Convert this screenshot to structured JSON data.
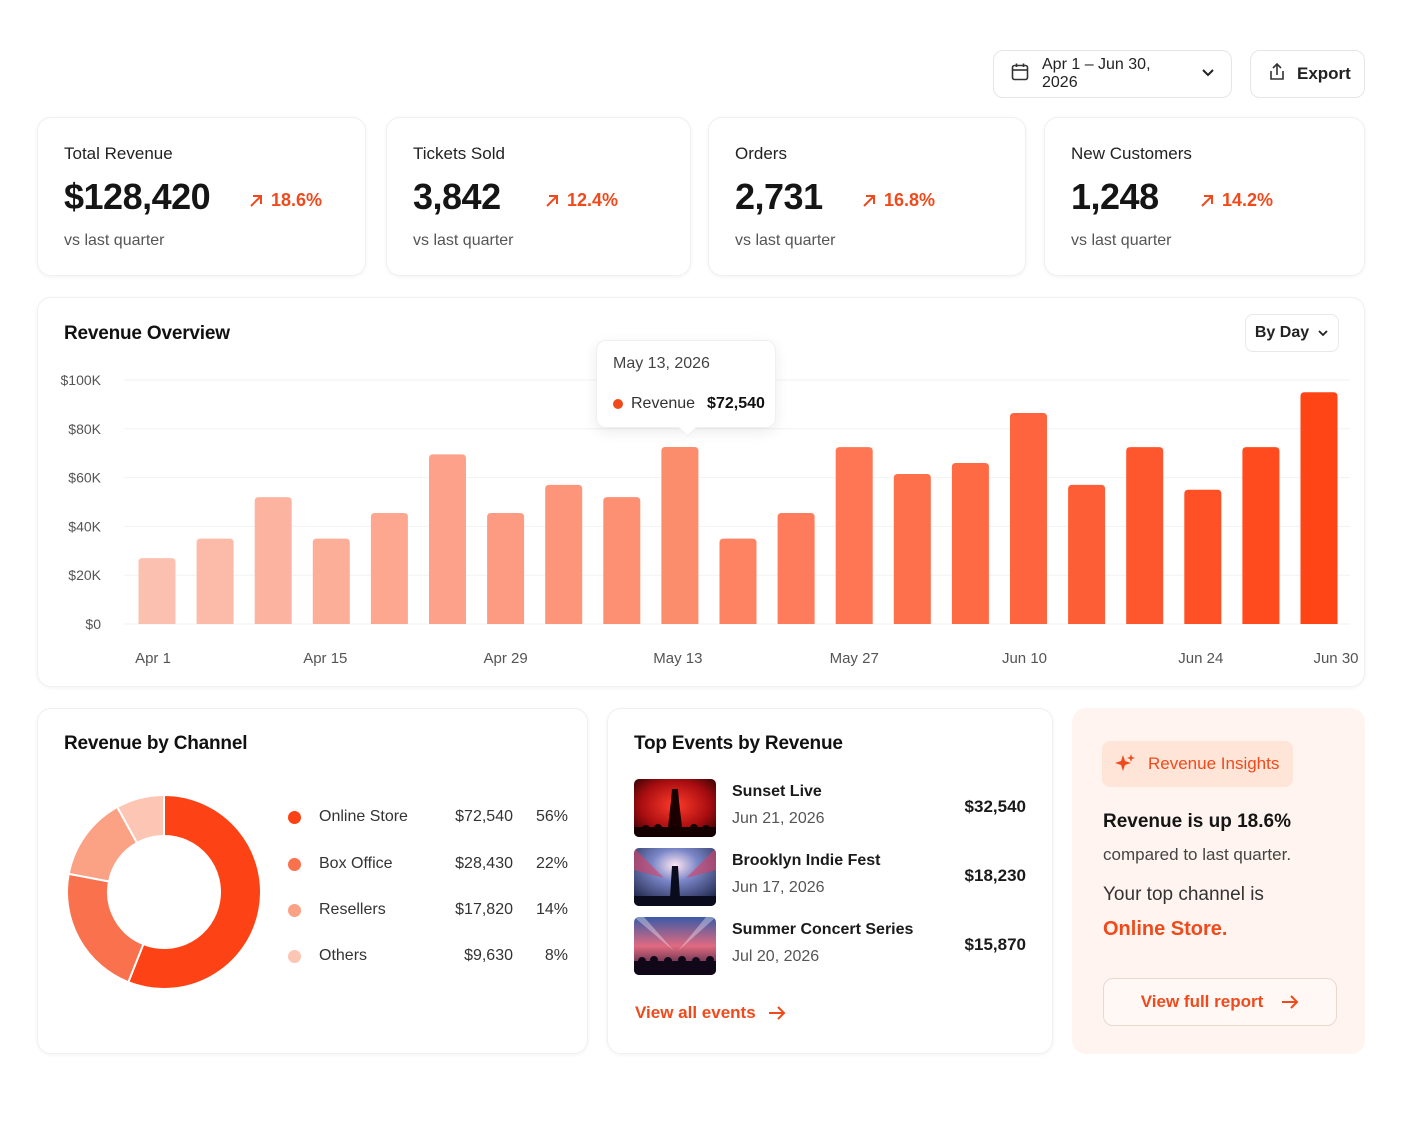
{
  "header": {
    "date_range": "Apr 1 – Jun 30, 2026",
    "export_label": "Export"
  },
  "kpis": [
    {
      "label": "Total Revenue",
      "value": "$128,420",
      "change": "18.6%",
      "sub": "vs last quarter"
    },
    {
      "label": "Tickets Sold",
      "value": "3,842",
      "change": "12.4%",
      "sub": "vs last quarter"
    },
    {
      "label": "Orders",
      "value": "2,731",
      "change": "16.8%",
      "sub": "vs last quarter"
    },
    {
      "label": "New Customers",
      "value": "1,248",
      "change": "14.2%",
      "sub": "vs last quarter"
    }
  ],
  "revenue_overview": {
    "title": "Revenue Overview",
    "granularity": "By Day",
    "tooltip": {
      "date": "May 13, 2026",
      "series": "Revenue",
      "value": "$72,540"
    }
  },
  "chart_data": {
    "type": "bar",
    "title": "Revenue Overview",
    "x_ticks": [
      "Apr 1",
      "Apr 15",
      "Apr 29",
      "May 13",
      "May 27",
      "Jun 10",
      "Jun 24",
      "Jun 30"
    ],
    "y_ticks": [
      "$100K",
      "$80K",
      "$60K",
      "$40K",
      "$20K",
      "$0"
    ],
    "ylim": [
      0,
      100000
    ],
    "values": [
      27000,
      35000,
      52000,
      35000,
      45500,
      69500,
      45500,
      57000,
      52000,
      72540,
      35000,
      45500,
      72500,
      61500,
      66000,
      86500,
      57000,
      72500,
      55000,
      72500,
      95000
    ],
    "highlight_index": 9,
    "color_start": "#fcc0b0",
    "color_end": "#ff4516",
    "grid": true
  },
  "channels": {
    "title": "Revenue by Channel",
    "items": [
      {
        "name": "Online Store",
        "amount": "$72,540",
        "pct": "56%",
        "share": 56,
        "color": "#fd4316"
      },
      {
        "name": "Box Office",
        "amount": "$28,430",
        "pct": "22%",
        "share": 22,
        "color": "#f9714d"
      },
      {
        "name": "Resellers",
        "amount": "$17,820",
        "pct": "14%",
        "share": 14,
        "color": "#fba184"
      },
      {
        "name": "Others",
        "amount": "$9,630",
        "pct": "8%",
        "share": 8,
        "color": "#fdc5b3"
      }
    ]
  },
  "events": {
    "title": "Top Events by Revenue",
    "items": [
      {
        "name": "Sunset Live",
        "date": "Jun 21, 2026",
        "amount": "$32,540"
      },
      {
        "name": "Brooklyn Indie Fest",
        "date": "Jun 17, 2026",
        "amount": "$18,230"
      },
      {
        "name": "Summer Concert Series",
        "date": "Jul 20, 2026",
        "amount": "$15,870"
      }
    ],
    "view_all": "View all events"
  },
  "insights": {
    "label": "Revenue Insights",
    "headline": "Revenue is up 18.6%",
    "sub": "compared to last quarter.",
    "top_channel_prefix": "Your top channel is",
    "top_channel": "Online Store.",
    "button": "View full report"
  },
  "colors": {
    "accent": "#f04a1c"
  }
}
